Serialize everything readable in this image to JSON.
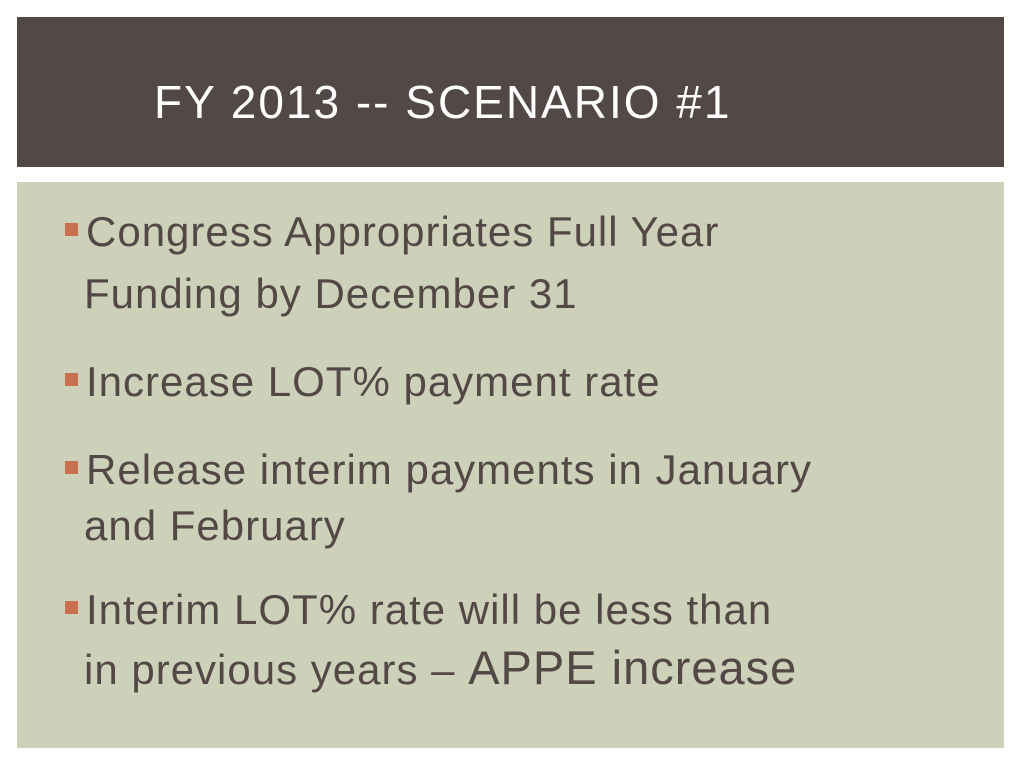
{
  "slide": {
    "title": "FY 2013 -- SCENARIO #1",
    "bullets": [
      {
        "lines": [
          "Congress Appropriates Full Year",
          "Funding by December 31"
        ]
      },
      {
        "lines": [
          "Increase LOT% payment rate"
        ]
      },
      {
        "lines": [
          "Release interim payments in January",
          "and February"
        ]
      },
      {
        "lines": [
          "Interim LOT% rate will be less than",
          "in previous years – ",
          "APPE increase"
        ]
      }
    ]
  },
  "colors": {
    "title_background": "#524845",
    "title_text": "#ffffff",
    "content_background": "#cdd1b9",
    "body_text": "#524845",
    "bullet_marker": "#c9704f"
  },
  "icons": {
    "bullet": "square-bullet-icon"
  }
}
